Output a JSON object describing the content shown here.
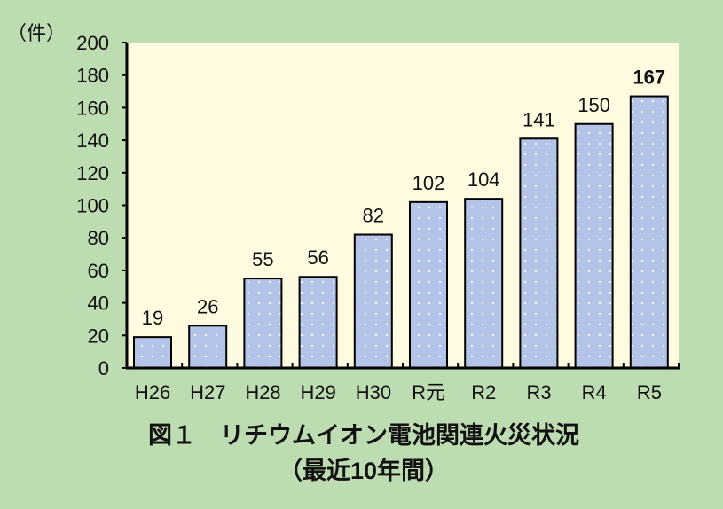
{
  "chart_data": {
    "type": "bar",
    "title": "図１　リチウムイオン電池関連火災状況",
    "subtitle": "（最近10年間）",
    "ylabel": "（件）",
    "xlabel": "",
    "categories": [
      "H26",
      "H27",
      "H28",
      "H29",
      "H30",
      "R元",
      "R2",
      "R3",
      "R4",
      "R5"
    ],
    "values": [
      19,
      26,
      55,
      56,
      82,
      102,
      104,
      141,
      150,
      167
    ],
    "ylim": [
      0,
      200
    ],
    "yticks": [
      0,
      20,
      40,
      60,
      80,
      100,
      120,
      140,
      160,
      180,
      200
    ],
    "grid": false,
    "legend": "none",
    "highlight_bold_label": "R5",
    "colors": {
      "background": "#bddcb1",
      "plot_area": "#fffbe0",
      "bar": "#b3c4e8",
      "bar_dots": "#ffffff",
      "axis": "#000000"
    }
  }
}
